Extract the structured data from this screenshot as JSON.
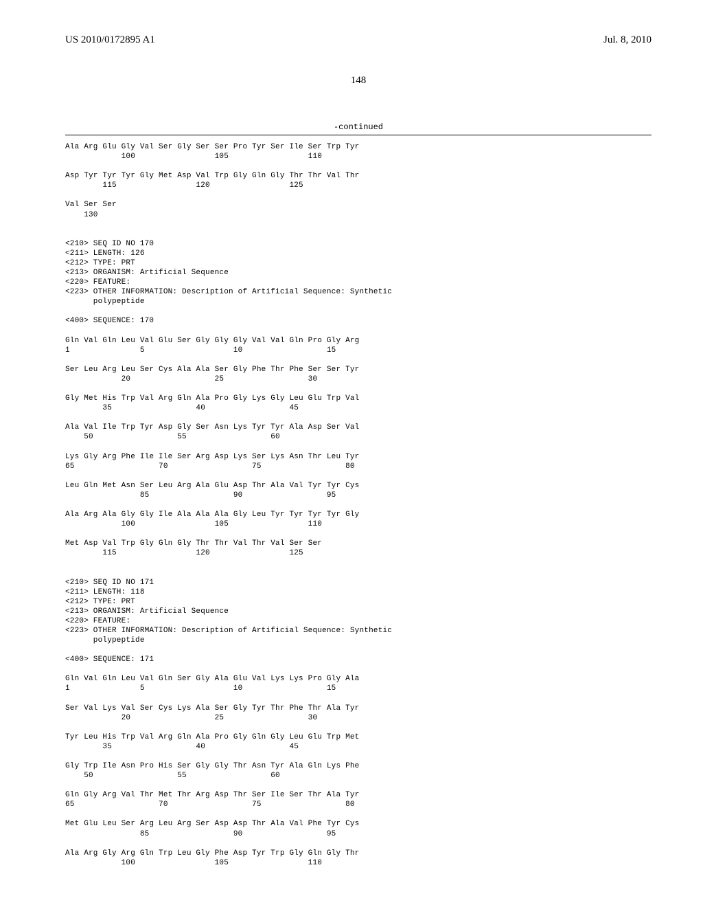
{
  "header": {
    "pub_number": "US 2010/0172895 A1",
    "pub_date": "Jul. 8, 2010"
  },
  "page_number": "148",
  "continued_label": "-continued",
  "seq_text": "Ala Arg Glu Gly Val Ser Gly Ser Ser Pro Tyr Ser Ile Ser Trp Tyr\n            100                 105                 110\n\nAsp Tyr Tyr Tyr Gly Met Asp Val Trp Gly Gln Gly Thr Thr Val Thr\n        115                 120                 125\n\nVal Ser Ser\n    130\n\n\n<210> SEQ ID NO 170\n<211> LENGTH: 126\n<212> TYPE: PRT\n<213> ORGANISM: Artificial Sequence\n<220> FEATURE:\n<223> OTHER INFORMATION: Description of Artificial Sequence: Synthetic\n      polypeptide\n\n<400> SEQUENCE: 170\n\nGln Val Gln Leu Val Glu Ser Gly Gly Gly Val Val Gln Pro Gly Arg\n1               5                   10                  15\n\nSer Leu Arg Leu Ser Cys Ala Ala Ser Gly Phe Thr Phe Ser Ser Tyr\n            20                  25                  30\n\nGly Met His Trp Val Arg Gln Ala Pro Gly Lys Gly Leu Glu Trp Val\n        35                  40                  45\n\nAla Val Ile Trp Tyr Asp Gly Ser Asn Lys Tyr Tyr Ala Asp Ser Val\n    50                  55                  60\n\nLys Gly Arg Phe Ile Ile Ser Arg Asp Lys Ser Lys Asn Thr Leu Tyr\n65                  70                  75                  80\n\nLeu Gln Met Asn Ser Leu Arg Ala Glu Asp Thr Ala Val Tyr Tyr Cys\n                85                  90                  95\n\nAla Arg Ala Gly Gly Ile Ala Ala Ala Gly Leu Tyr Tyr Tyr Tyr Gly\n            100                 105                 110\n\nMet Asp Val Trp Gly Gln Gly Thr Thr Val Thr Val Ser Ser\n        115                 120                 125\n\n\n<210> SEQ ID NO 171\n<211> LENGTH: 118\n<212> TYPE: PRT\n<213> ORGANISM: Artificial Sequence\n<220> FEATURE:\n<223> OTHER INFORMATION: Description of Artificial Sequence: Synthetic\n      polypeptide\n\n<400> SEQUENCE: 171\n\nGln Val Gln Leu Val Gln Ser Gly Ala Glu Val Lys Lys Pro Gly Ala\n1               5                   10                  15\n\nSer Val Lys Val Ser Cys Lys Ala Ser Gly Tyr Thr Phe Thr Ala Tyr\n            20                  25                  30\n\nTyr Leu His Trp Val Arg Gln Ala Pro Gly Gln Gly Leu Glu Trp Met\n        35                  40                  45\n\nGly Trp Ile Asn Pro His Ser Gly Gly Thr Asn Tyr Ala Gln Lys Phe\n    50                  55                  60\n\nGln Gly Arg Val Thr Met Thr Arg Asp Thr Ser Ile Ser Thr Ala Tyr\n65                  70                  75                  80\n\nMet Glu Leu Ser Arg Leu Arg Ser Asp Asp Thr Ala Val Phe Tyr Cys\n                85                  90                  95\n\nAla Arg Gly Arg Gln Trp Leu Gly Phe Asp Tyr Trp Gly Gln Gly Thr\n            100                 105                 110"
}
